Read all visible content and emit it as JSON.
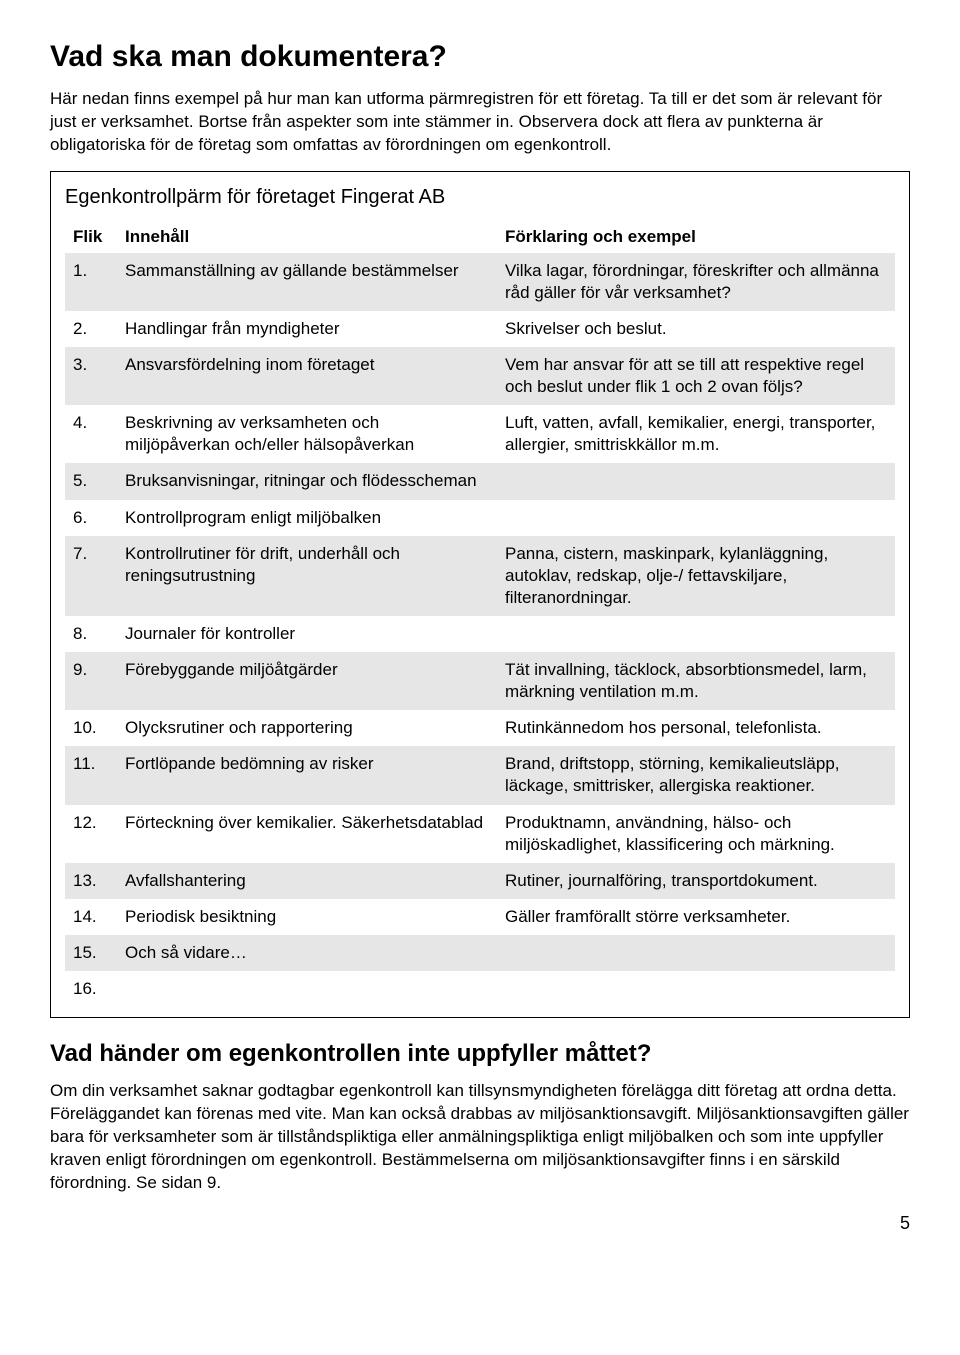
{
  "heading1": "Vad ska man dokumentera?",
  "intro": "Här nedan finns exempel på hur man kan utforma pärmregistren för ett företag. Ta till er det som är relevant för just er verksamhet. Bortse från aspekter som inte stämmer in. Observera dock att flera av punkterna är obligatoriska för de företag som omfattas av förordningen om egenkontroll.",
  "box_title": "Egenkontrollpärm för företaget Fingerat AB",
  "table": {
    "head_flik": "Flik",
    "head_content": "Innehåll",
    "head_explain": "Förklaring och exempel",
    "rows": [
      {
        "flik": "1.",
        "content": "Sammanställning av gällande bestämmelser",
        "explain": "Vilka lagar, förordningar, föreskrifter och allmänna råd gäller för vår verksamhet?"
      },
      {
        "flik": "2.",
        "content": "Handlingar från myndigheter",
        "explain": "Skrivelser och beslut."
      },
      {
        "flik": "3.",
        "content": "Ansvarsfördelning inom företaget",
        "explain": "Vem har ansvar för att se till att respektive regel och beslut under flik 1 och 2 ovan följs?"
      },
      {
        "flik": "4.",
        "content": "Beskrivning av verksamheten och miljöpåverkan och/eller hälsopåverkan",
        "explain": "Luft, vatten, avfall, kemikalier, energi, transporter, allergier, smittriskkällor m.m."
      },
      {
        "flik": "5.",
        "content": "Bruksanvisningar, ritningar och flödesscheman",
        "explain": ""
      },
      {
        "flik": "6.",
        "content": "Kontrollprogram enligt miljöbalken",
        "explain": ""
      },
      {
        "flik": "7.",
        "content": "Kontrollrutiner för drift, underhåll och reningsutrustning",
        "explain": "Panna, cistern, maskinpark, kylanläggning, autoklav, redskap, olje-/ fettavskiljare, filteranordningar."
      },
      {
        "flik": "8.",
        "content": "Journaler för kontroller",
        "explain": ""
      },
      {
        "flik": "9.",
        "content": "Förebyggande miljöåtgärder",
        "explain": "Tät invallning, täcklock, absorbtionsmedel, larm, märkning ventilation m.m."
      },
      {
        "flik": "10.",
        "content": "Olycksrutiner och rapportering",
        "explain": "Rutinkännedom hos personal, telefonlista."
      },
      {
        "flik": "11.",
        "content": "Fortlöpande bedömning av risker",
        "explain": "Brand, driftstopp, störning, kemikalieutsläpp, läckage, smittrisker, allergiska reaktioner."
      },
      {
        "flik": "12.",
        "content": "Förteckning över kemikalier. Säkerhetsdatablad",
        "explain": "Produktnamn, användning, hälso- och miljöskadlighet, klassificering och märkning."
      },
      {
        "flik": "13.",
        "content": "Avfallshantering",
        "explain": "Rutiner, journalföring, transportdokument."
      },
      {
        "flik": "14.",
        "content": "Periodisk besiktning",
        "explain": "Gäller framförallt större verksamheter."
      },
      {
        "flik": "15.",
        "content": "Och så vidare…",
        "explain": ""
      },
      {
        "flik": "16.",
        "content": "",
        "explain": ""
      }
    ]
  },
  "heading2": "Vad händer om egenkontrollen inte uppfyller måttet?",
  "outro": "Om din verksamhet saknar godtagbar egenkontroll kan tillsynsmyndigheten förelägga ditt företag att ordna detta. Föreläggandet kan förenas med vite. Man kan också drabbas av miljösanktionsavgift. Miljösanktionsavgiften gäller bara för verksamheter som är tillståndspliktiga eller anmälningspliktiga enligt miljöbalken och som inte uppfyller kraven enligt förordningen om egenkontroll. Bestämmelserna om miljösanktionsavgifter finns i en särskild förordning. Se sidan 9.",
  "page_number": "5",
  "colors": {
    "shade": "#e6e6e6",
    "text": "#000000",
    "bg": "#ffffff"
  }
}
